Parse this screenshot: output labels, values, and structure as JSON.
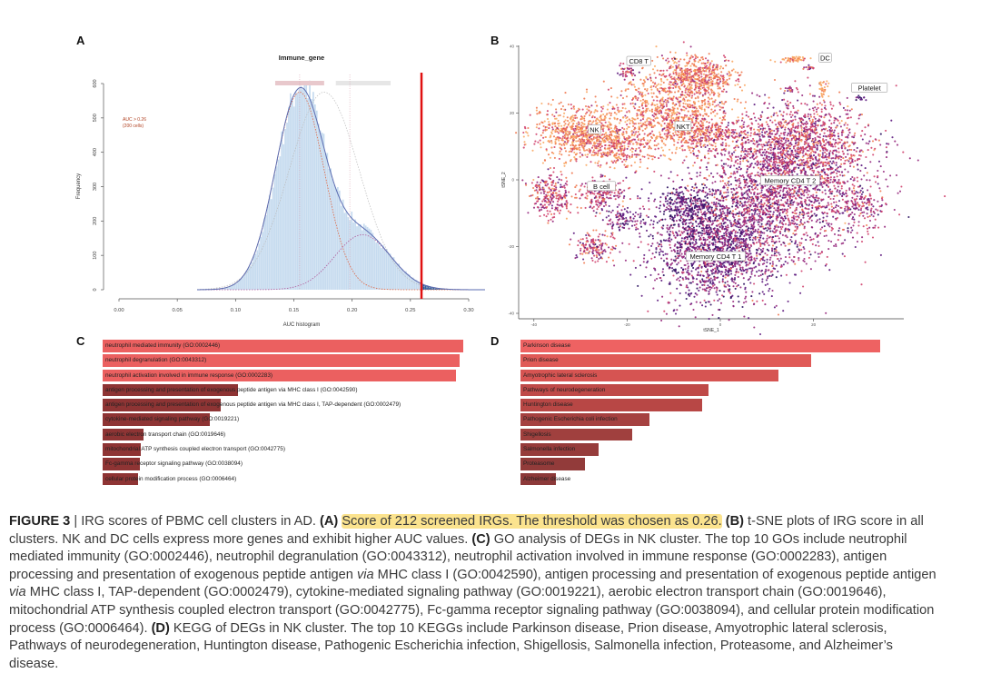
{
  "panels": {
    "a": "A",
    "b": "B",
    "c": "C",
    "d": "D"
  },
  "chart_data": [
    {
      "type": "histogram",
      "title": "Immune_gene",
      "xlabel": "AUC histogram",
      "ylabel": "Frequency",
      "xlim": [
        0.0,
        0.3
      ],
      "ylim": [
        0,
        600
      ],
      "xticks": [
        "0.00",
        "0.05",
        "0.10",
        "0.15",
        "0.20",
        "0.25",
        "0.30"
      ],
      "yticks": [
        "0",
        "100",
        "200",
        "300",
        "400",
        "500",
        "600"
      ],
      "data_range": [
        0.067,
        0.315
      ],
      "threshold": 0.26,
      "annotation": [
        "AUC > 0.26",
        "(200 cells)"
      ],
      "components": [
        {
          "mean": 0.155,
          "sd": 0.021,
          "peak": 575,
          "color": "#e0603a"
        },
        {
          "mean": 0.209,
          "sd": 0.024,
          "peak": 160,
          "color": "#b05a9a"
        }
      ],
      "colors": {
        "bars": "#c6dbef",
        "bars_above": "#2b5c9e",
        "fit": "#5a6bb0",
        "threshold": "#e01010"
      }
    },
    {
      "type": "scatter",
      "xlabel": "tSNE_1",
      "ylabel": "tSNE_2",
      "xlim": [
        -43,
        37
      ],
      "ylim": [
        -42,
        41
      ],
      "xticks": [
        -40,
        -20,
        0,
        20
      ],
      "yticks": [
        40,
        20,
        0,
        -20,
        -40
      ],
      "palette": [
        "#2a0f5e",
        "#5d1a7e",
        "#96287d",
        "#d0436e",
        "#f07a52",
        "#f9a864"
      ],
      "clusters": [
        {
          "label": "CD8 T",
          "label_at": [
            -17.5,
            35.5
          ]
        },
        {
          "label": "DC",
          "label_at": [
            22.5,
            36.5
          ]
        },
        {
          "label": "Platelet",
          "label_at": [
            32,
            27.5
          ]
        },
        {
          "label": "NK",
          "label_at": [
            -27,
            15
          ]
        },
        {
          "label": "NKT",
          "label_at": [
            -8,
            16
          ]
        },
        {
          "label": "B cell",
          "label_at": [
            -25.5,
            -2
          ]
        },
        {
          "label": "Memory CD4 T 2",
          "label_at": [
            15,
            -0.3
          ]
        },
        {
          "label": "Memory CD4 T 1",
          "label_at": [
            -1,
            -23
          ]
        }
      ]
    },
    {
      "type": "bar",
      "orientation": "horizontal",
      "categories": [
        "neutrophil mediated immunity (GO:0002446)",
        "neutrophil degranulation (GO:0043312)",
        "neutrophil activation involved in immune response (GO:0002283)",
        "antigen processing and presentation of exogenous peptide antigen via MHC class I (GO:0042590)",
        "antigen processing and presentation of exogenous peptide antigen via MHC class I, TAP-dependent (GO:0002479)",
        "cytokine-mediated signaling pathway (GO:0019221)",
        "aerobic electron transport chain (GO:0019646)",
        "mitochondrial ATP synthesis coupled electron transport (GO:0042775)",
        "Fc-gamma receptor signaling pathway (GO:0038094)",
        "cellular protein modification process (GO:0006464)"
      ],
      "values": [
        1.0,
        0.99,
        0.98,
        0.375,
        0.327,
        0.297,
        0.113,
        0.106,
        0.103,
        0.098
      ],
      "colors": [
        "#eb6060",
        "#eb6060",
        "#eb6060",
        "#8e3434",
        "#8e3434",
        "#8e3434",
        "#8e3434",
        "#8e3434",
        "#8e3434",
        "#8e3434"
      ]
    },
    {
      "type": "bar",
      "orientation": "horizontal",
      "categories": [
        "Parkinson disease",
        "Prion disease",
        "Amyotrophic lateral sclerosis",
        "Pathways of neurodegeneration",
        "Huntington disease",
        "Pathogenic Escherichia coli infection",
        "Shigellosis",
        "Salmonella infection",
        "Proteasome",
        "Alzheimer disease"
      ],
      "values": [
        1.0,
        0.808,
        0.717,
        0.523,
        0.505,
        0.359,
        0.311,
        0.217,
        0.179,
        0.098
      ],
      "colors": [
        "#ee6262",
        "#e05a57",
        "#d65452",
        "#bf4a48",
        "#b84745",
        "#a54140",
        "#a0403e",
        "#963c3b",
        "#923b3a",
        "#8c3939"
      ]
    }
  ],
  "caption": {
    "label": "FIGURE 3",
    "sep": " | IRG scores of PBMC cell clusters in AD. ",
    "a_tag": "(A)",
    "a_text": "Score of 212 screened IRGs. The threshold was chosen as 0.26.",
    "b_tag": "(B)",
    "b_text": " t-SNE plots of IRG score in all clusters. NK and DC cells express more genes and exhibit higher AUC values. ",
    "c_tag": "(C)",
    "c_text1": " GO analysis of DEGs in NK cluster. The top 10 GOs include neutrophil mediated immunity (GO:0002446), neutrophil degranulation (GO:0043312), neutrophil activation involved in immune response (GO:0002283), antigen processing and presentation of exogenous peptide antigen ",
    "via1": "via",
    "c_text2": " MHC class I (GO:0042590), antigen processing and presentation of exogenous peptide antigen ",
    "via2": "via",
    "c_text3": " MHC class I, TAP-dependent (GO:0002479), cytokine-mediated signaling pathway (GO:0019221), aerobic electron transport chain (GO:0019646), mitochondrial ATP synthesis coupled electron transport (GO:0042775), Fc-gamma receptor signaling pathway (GO:0038094), and cellular protein modification process (GO:0006464). ",
    "d_tag": "(D)",
    "d_text": " KEGG of DEGs in NK cluster. The top 10 KEGGs include Parkinson disease, Prion disease, Amyotrophic lateral sclerosis, Pathways of neurodegeneration, Huntington disease, Pathogenic Escherichia infection, Shigellosis, Salmonella infection, Proteasome, and Alzheimer’s disease."
  }
}
